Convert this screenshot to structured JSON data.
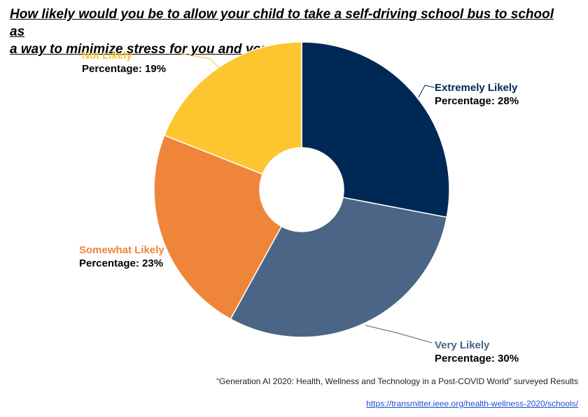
{
  "title_lines": [
    "How likely would you be to allow your child to take a self-driving school bus to school as",
    "a way to minimize stress for you and your child?"
  ],
  "chart_data": {
    "type": "pie",
    "donut": true,
    "categories": [
      "Extremely Likely",
      "Very Likely",
      "Somewhat Likely",
      "Not Likely"
    ],
    "values": [
      28,
      30,
      23,
      19
    ],
    "value_prefix": "Percentage: ",
    "value_suffix": "%",
    "colors": [
      "#002855",
      "#4a6585",
      "#ef8539",
      "#fdc52f"
    ],
    "legend": "none"
  },
  "source_text": "“Generation AI 2020: Health, Wellness and Technology in a Post-COVID World” surveyed Results",
  "source_url": "https://transmitter.ieee.org/health-wellness-2020/schools/"
}
